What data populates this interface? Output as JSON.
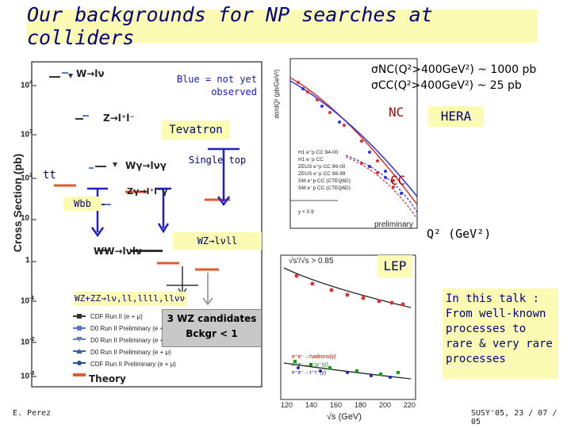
{
  "slide": {
    "title": "Our backgrounds for NP searches at colliders",
    "author": "E. Perez",
    "footer": "SUSY'05, 23 / 07 / 05"
  },
  "tevatron": {
    "ylabel": "Cross Section (pb)",
    "yticks": [
      "10",
      "10",
      "10",
      "10",
      "1",
      "10",
      "10",
      "10",
      "10"
    ],
    "yexps": [
      "4",
      "3",
      "2",
      "",
      "",
      "-1",
      "-2",
      "-3",
      "-4"
    ],
    "processes": {
      "w": "W→lν",
      "z": "Z→l⁺l⁻",
      "wgamma": "Wγ→lνγ",
      "zgamma": "Zγ→l⁺l⁻γ",
      "ww": "WW→lνlν",
      "tt": "tt",
      "wbb": "Wbb",
      "singletop": "Single top",
      "wzlvll": "WZ→lνll",
      "wzzz": "WZ+ZZ→lν,ll,llll,llνν"
    },
    "note_blue": "Blue = not yet observed",
    "label": "Tevatron",
    "legend": [
      "CDF Run II (e + μ)",
      "D0 Run II Preliminary (e + μ)",
      "D0 Run II Preliminary (e + e)",
      "D0 Run II Preliminary (e + μ)",
      "CDF Run II Preliminary (e + μ)"
    ],
    "theory": "Theory",
    "wz_box_line1": "3 WZ candidates",
    "wz_box_line2": "Bckgr < 1"
  },
  "hera": {
    "nc_xsec": "σNC(Q²>400GeV²) ~ 1000 pb",
    "cc_xsec": "σCC(Q²>400GeV²) ~ 25 pb",
    "nc": "NC",
    "cc": "CC",
    "label": "HERA",
    "ylabel": "dσ/dQ² (pb/GeV²)",
    "xlabel": "Q² (GeV²)",
    "preliminary": "preliminary",
    "legend": [
      "H1 e⁺p CC 94-00",
      "H1 e⁻p CC",
      "ZEUS e⁺p CC 99-00",
      "ZEUS e⁻p CC 98-99",
      "SM e⁺p CC (CTEQ6D)",
      "SM e⁻p CC (CTEQ6D)"
    ],
    "y_note": "y < 0.9"
  },
  "lep": {
    "label": "LEP",
    "cut": "√s'/√s > 0.85",
    "xlabel": "√s (GeV)",
    "xticks": [
      "120",
      "140",
      "160",
      "180",
      "200",
      "220"
    ],
    "legend": [
      "e⁺e⁻→hadrons(γ)",
      "e⁺e⁻→μ⁺μ⁻(γ)",
      "e⁺e⁻→τ⁺τ⁻(γ)"
    ]
  },
  "talk_note": "In this talk :\nFrom well-known processes to rare & very rare processes"
}
